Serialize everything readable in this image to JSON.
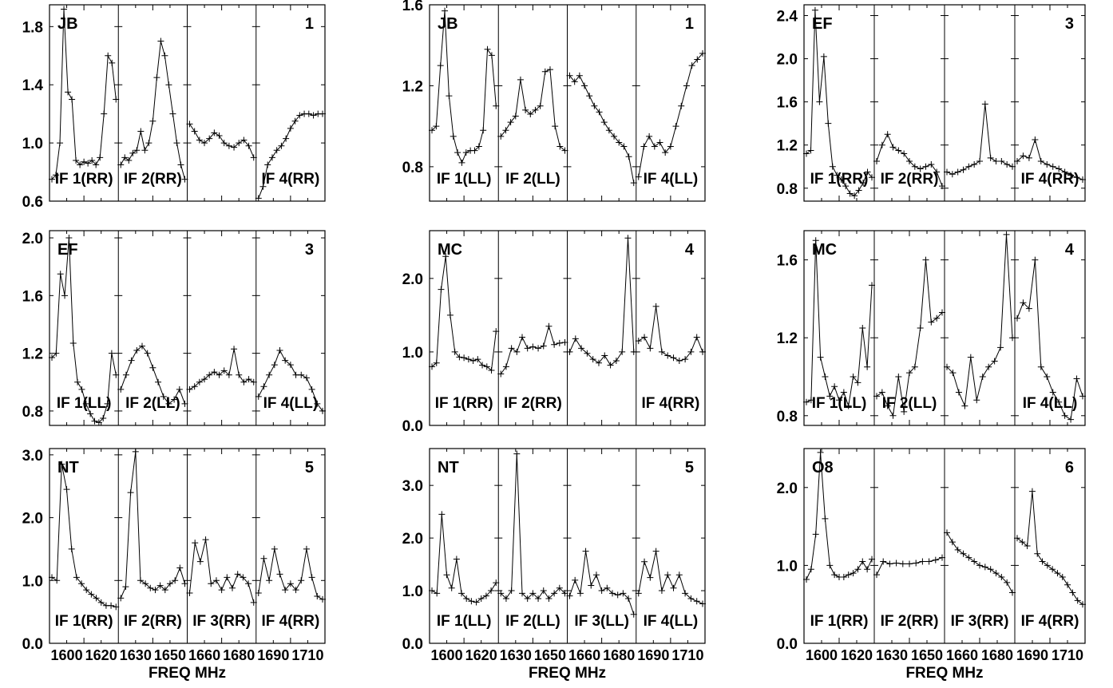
{
  "figure": {
    "xlabel": "FREQ MHz",
    "x_ticks": [
      "1600",
      "1620",
      "1630",
      "1650",
      "1660",
      "1680",
      "1690",
      "1710"
    ],
    "colors": {
      "line": "#000000",
      "frame": "#000000",
      "background": "#ffffff"
    }
  },
  "chart_data": [
    {
      "type": "line",
      "column": 0,
      "row": 0,
      "station": "JB",
      "number": "1",
      "ylim": [
        0.6,
        1.95
      ],
      "yticks": [
        "0.6",
        "1.0",
        "1.4",
        "1.8"
      ],
      "panels": [
        {
          "label": "IF 1(RR)",
          "values": [
            0.75,
            0.78,
            1.0,
            1.92,
            1.35,
            1.3,
            0.88,
            0.85,
            0.87,
            0.86,
            0.88,
            0.85,
            0.9,
            1.2,
            1.6,
            1.55,
            1.3
          ]
        },
        {
          "label": "IF 2(RR)",
          "values": [
            0.85,
            0.9,
            0.88,
            0.93,
            0.95,
            1.08,
            0.95,
            1.0,
            1.15,
            1.45,
            1.7,
            1.6,
            1.4,
            1.2,
            1.0,
            0.85,
            0.75
          ]
        },
        {
          "label": "",
          "values": [
            1.13,
            1.08,
            1.02,
            1.0,
            1.03,
            1.07,
            1.05,
            1.0,
            0.98,
            0.97,
            1.0,
            1.02,
            0.98,
            0.9
          ]
        },
        {
          "label": "IF 4(RR)",
          "values": [
            0.62,
            0.7,
            0.85,
            0.9,
            0.95,
            0.98,
            1.03,
            1.1,
            1.15,
            1.19,
            1.2,
            1.2,
            1.19,
            1.2,
            1.2
          ]
        }
      ]
    },
    {
      "type": "line",
      "column": 0,
      "row": 1,
      "station": "EF",
      "number": "3",
      "ylim": [
        0.7,
        2.05
      ],
      "yticks": [
        "0.8",
        "1.2",
        "1.6",
        "2.0"
      ],
      "panels": [
        {
          "label": "IF 1(LL)",
          "values": [
            1.17,
            1.2,
            1.75,
            1.6,
            2.0,
            1.27,
            1.0,
            0.95,
            0.85,
            0.78,
            0.73,
            0.72,
            0.75,
            0.85,
            1.2,
            1.05
          ]
        },
        {
          "label": "IF 2(LL)",
          "values": [
            0.95,
            1.05,
            1.15,
            1.22,
            1.25,
            1.2,
            1.1,
            1.0,
            0.9,
            0.85,
            0.88,
            0.95,
            0.85
          ]
        },
        {
          "label": "",
          "values": [
            0.95,
            0.97,
            1.0,
            1.02,
            1.05,
            1.07,
            1.05,
            1.08,
            1.05,
            1.23,
            1.05,
            1.0,
            1.02,
            1.0
          ]
        },
        {
          "label": "IF 4(LL)",
          "values": [
            0.9,
            0.97,
            1.05,
            1.12,
            1.22,
            1.15,
            1.12,
            1.05,
            1.05,
            1.03,
            0.95,
            0.85,
            0.8
          ]
        }
      ]
    },
    {
      "type": "line",
      "column": 0,
      "row": 2,
      "station": "NT",
      "number": "5",
      "ylim": [
        0.0,
        3.1
      ],
      "yticks": [
        "0.0",
        "1.0",
        "2.0",
        "3.0"
      ],
      "panels": [
        {
          "label": "IF 1(RR)",
          "values": [
            1.05,
            1.0,
            2.85,
            2.45,
            1.5,
            1.05,
            0.95,
            0.85,
            0.78,
            0.72,
            0.65,
            0.6,
            0.6,
            0.58
          ]
        },
        {
          "label": "IF 2(RR)",
          "values": [
            0.72,
            0.9,
            2.4,
            3.05,
            1.0,
            0.95,
            0.88,
            0.85,
            0.92,
            0.85,
            0.95,
            1.0,
            1.2,
            0.95
          ]
        },
        {
          "label": "IF 3(RR)",
          "values": [
            0.8,
            1.6,
            1.3,
            1.65,
            0.95,
            1.0,
            0.85,
            1.05,
            0.88,
            1.1,
            1.05,
            0.95,
            0.65
          ]
        },
        {
          "label": "IF 4(RR)",
          "values": [
            0.8,
            1.35,
            1.0,
            1.5,
            1.1,
            0.85,
            0.95,
            0.85,
            1.0,
            1.5,
            1.05,
            0.75,
            0.7
          ]
        }
      ]
    },
    {
      "type": "line",
      "column": 1,
      "row": 0,
      "station": "JB",
      "number": "1",
      "ylim": [
        0.63,
        1.6
      ],
      "yticks": [
        "0.8",
        "1.2",
        "1.6"
      ],
      "panels": [
        {
          "label": "IF 1(LL)",
          "values": [
            0.98,
            1.0,
            1.3,
            1.57,
            1.15,
            0.95,
            0.87,
            0.82,
            0.87,
            0.88,
            0.88,
            0.9,
            0.98,
            1.38,
            1.35,
            1.1
          ]
        },
        {
          "label": "IF 2(LL)",
          "values": [
            0.95,
            0.98,
            1.02,
            1.05,
            1.23,
            1.08,
            1.06,
            1.08,
            1.1,
            1.27,
            1.28,
            1.0,
            0.9,
            0.88
          ]
        },
        {
          "label": "",
          "values": [
            1.25,
            1.22,
            1.25,
            1.2,
            1.15,
            1.1,
            1.07,
            1.02,
            0.98,
            0.95,
            0.92,
            0.9,
            0.85,
            0.72
          ]
        },
        {
          "label": "IF 4(LL)",
          "values": [
            0.75,
            0.9,
            0.95,
            0.9,
            0.92,
            0.87,
            0.9,
            1.0,
            1.1,
            1.2,
            1.3,
            1.33,
            1.36
          ]
        }
      ]
    },
    {
      "type": "line",
      "column": 1,
      "row": 1,
      "station": "MC",
      "number": "4",
      "ylim": [
        0.0,
        2.65
      ],
      "yticks": [
        "0.0",
        "1.0",
        "2.0"
      ],
      "panels": [
        {
          "label": "IF 1(RR)",
          "values": [
            0.8,
            0.85,
            1.85,
            2.3,
            1.5,
            1.0,
            0.93,
            0.92,
            0.9,
            0.88,
            0.9,
            0.82,
            0.8,
            0.75,
            1.28
          ]
        },
        {
          "label": "IF 2(RR)",
          "values": [
            0.7,
            0.8,
            1.05,
            1.0,
            1.2,
            1.05,
            1.07,
            1.05,
            1.08,
            1.35,
            1.1,
            1.12,
            1.13
          ]
        },
        {
          "label": "",
          "values": [
            1.0,
            1.18,
            1.05,
            0.98,
            0.9,
            0.85,
            0.95,
            0.82,
            0.88,
            1.0,
            2.55,
            1.0
          ]
        },
        {
          "label": "IF 4(RR)",
          "values": [
            1.15,
            1.2,
            1.05,
            1.62,
            1.0,
            0.95,
            0.92,
            0.88,
            0.9,
            1.0,
            1.2,
            1.0
          ]
        }
      ]
    },
    {
      "type": "line",
      "column": 1,
      "row": 2,
      "station": "NT",
      "number": "5",
      "ylim": [
        0.0,
        3.7
      ],
      "yticks": [
        "0.0",
        "1.0",
        "2.0",
        "3.0"
      ],
      "panels": [
        {
          "label": "IF 1(LL)",
          "values": [
            1.0,
            0.95,
            2.45,
            1.3,
            1.05,
            1.6,
            0.95,
            0.85,
            0.8,
            0.78,
            0.85,
            0.9,
            1.0,
            1.15
          ]
        },
        {
          "label": "IF 2(LL)",
          "values": [
            0.95,
            0.85,
            1.0,
            3.6,
            0.95,
            0.85,
            0.95,
            0.85,
            1.0,
            0.85,
            0.95,
            1.05,
            0.95
          ]
        },
        {
          "label": "IF 3(LL)",
          "values": [
            0.9,
            1.2,
            0.95,
            1.75,
            1.1,
            1.3,
            1.0,
            1.05,
            0.95,
            0.92,
            0.95,
            0.85,
            0.55
          ]
        },
        {
          "label": "IF 4(LL)",
          "values": [
            0.95,
            1.55,
            1.25,
            1.75,
            1.0,
            1.3,
            1.05,
            1.3,
            0.95,
            0.85,
            0.8,
            0.75
          ]
        }
      ]
    },
    {
      "type": "line",
      "column": 2,
      "row": 0,
      "station": "EF",
      "number": "3",
      "ylim": [
        0.68,
        2.5
      ],
      "yticks": [
        "0.8",
        "1.2",
        "1.6",
        "2.0",
        "2.4"
      ],
      "panels": [
        {
          "label": "IF 1(RR)",
          "values": [
            1.12,
            1.15,
            2.45,
            1.6,
            2.02,
            1.4,
            1.0,
            0.92,
            0.88,
            0.82,
            0.75,
            0.73,
            0.78,
            0.85,
            0.95,
            0.9
          ]
        },
        {
          "label": "IF 2(RR)",
          "values": [
            1.05,
            1.2,
            1.3,
            1.18,
            1.15,
            1.12,
            1.05,
            1.0,
            0.98,
            1.0,
            1.02,
            0.95,
            0.82
          ]
        },
        {
          "label": "",
          "values": [
            0.95,
            0.93,
            0.95,
            0.97,
            1.0,
            1.02,
            1.05,
            1.58,
            1.08,
            1.05,
            1.05,
            1.02,
            1.0
          ]
        },
        {
          "label": "IF 4(RR)",
          "values": [
            1.05,
            1.1,
            1.08,
            1.25,
            1.05,
            1.02,
            1.0,
            0.98,
            0.95,
            0.92,
            0.9,
            0.88
          ]
        }
      ]
    },
    {
      "type": "line",
      "column": 2,
      "row": 1,
      "station": "MC",
      "number": "4",
      "ylim": [
        0.75,
        1.75
      ],
      "yticks": [
        "0.8",
        "1.2",
        "1.6"
      ],
      "panels": [
        {
          "label": "IF 1(LL)",
          "values": [
            0.87,
            0.88,
            1.7,
            1.1,
            1.0,
            0.9,
            0.95,
            0.88,
            0.92,
            0.85,
            1.0,
            0.97,
            1.25,
            1.05,
            1.47
          ]
        },
        {
          "label": "IF 2(LL)",
          "values": [
            0.9,
            0.92,
            0.85,
            0.8,
            1.0,
            0.82,
            1.02,
            1.05,
            1.25,
            1.6,
            1.28,
            1.3,
            1.33
          ]
        },
        {
          "label": "",
          "values": [
            1.05,
            1.02,
            0.92,
            0.85,
            1.1,
            0.88,
            1.0,
            1.05,
            1.08,
            1.15,
            1.73,
            1.2
          ]
        },
        {
          "label": "IF 4(LL)",
          "values": [
            1.3,
            1.38,
            1.35,
            1.6,
            1.05,
            1.0,
            0.92,
            0.87,
            0.8,
            0.78,
            0.99,
            0.9
          ]
        }
      ]
    },
    {
      "type": "line",
      "column": 2,
      "row": 2,
      "station": "O8",
      "number": "6",
      "ylim": [
        0.0,
        2.5
      ],
      "yticks": [
        "0.0",
        "1.0",
        "2.0"
      ],
      "panels": [
        {
          "label": "IF 1(RR)",
          "values": [
            0.82,
            0.95,
            1.4,
            2.45,
            1.6,
            1.0,
            0.88,
            0.85,
            0.85,
            0.88,
            0.9,
            0.95,
            1.05,
            0.95,
            1.08
          ]
        },
        {
          "label": "IF 2(RR)",
          "values": [
            0.88,
            1.05,
            1.02,
            1.03,
            1.02,
            1.02,
            1.03,
            1.05,
            1.05,
            1.07,
            1.1
          ]
        },
        {
          "label": "IF 3(RR)",
          "values": [
            1.42,
            1.3,
            1.2,
            1.15,
            1.1,
            1.05,
            1.0,
            0.98,
            0.95,
            0.9,
            0.85,
            0.78,
            0.65
          ]
        },
        {
          "label": "IF 4(RR)",
          "values": [
            1.35,
            1.3,
            1.25,
            1.95,
            1.15,
            1.05,
            1.0,
            0.95,
            0.9,
            0.85,
            0.75,
            0.65,
            0.55,
            0.5
          ]
        }
      ]
    }
  ]
}
